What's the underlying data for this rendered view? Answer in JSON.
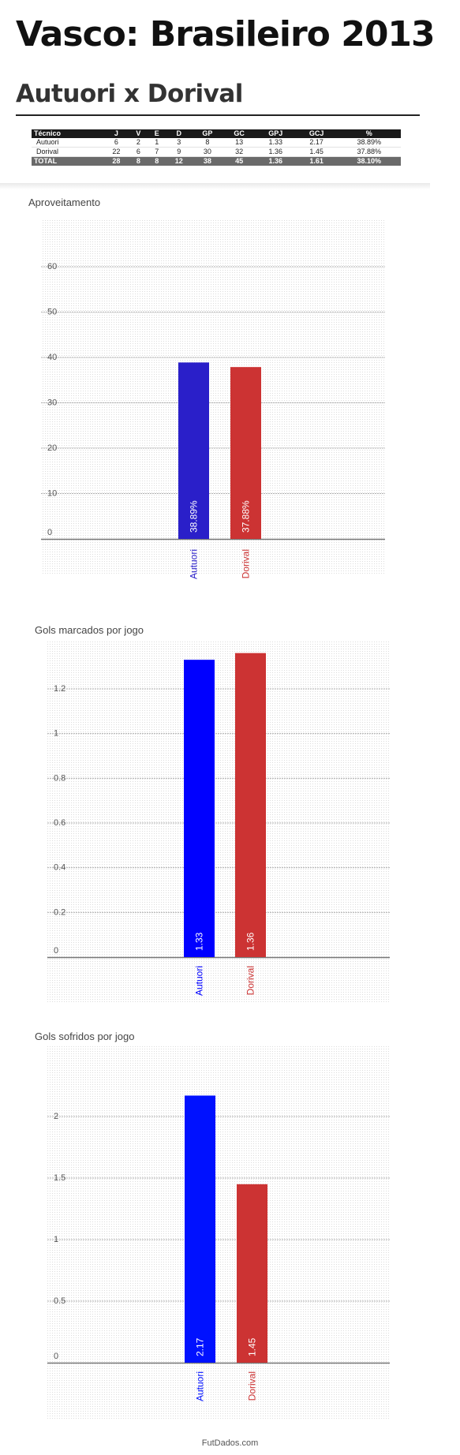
{
  "page": {
    "title": "Vasco: Brasileiro 2013",
    "subtitle": "Autuori x Dorival",
    "footer": "FutDados.com"
  },
  "stats_table": {
    "headers": [
      "Técnico",
      "J",
      "V",
      "E",
      "D",
      "GP",
      "GC",
      "GPJ",
      "GCJ",
      "%"
    ],
    "rows": [
      [
        "Autuori",
        "6",
        "2",
        "1",
        "3",
        "8",
        "13",
        "1.33",
        "2.17",
        "38.89%"
      ],
      [
        "Dorival",
        "22",
        "6",
        "7",
        "9",
        "30",
        "32",
        "1.36",
        "1.45",
        "37.88%"
      ]
    ],
    "total": [
      "TOTAL",
      "28",
      "8",
      "8",
      "12",
      "38",
      "45",
      "1.36",
      "1.61",
      "38.10%"
    ]
  },
  "chart_data": [
    {
      "type": "bar",
      "title": "Aproveitamento",
      "categories": [
        "Autuori",
        "Dorival"
      ],
      "values": [
        38.89,
        37.88
      ],
      "value_labels": [
        "38.89%",
        "37.88%"
      ],
      "ticks": [
        0,
        10,
        20,
        30,
        40,
        50,
        60
      ],
      "tick_labels": [
        "0",
        "10",
        "20",
        "30",
        "40",
        "50",
        "60"
      ],
      "ylim": [
        0,
        60
      ],
      "grid": true,
      "colors": [
        "#2a1fc9",
        "#cc3333"
      ]
    },
    {
      "type": "bar",
      "title": "Gols marcados por jogo",
      "categories": [
        "Autuori",
        "Dorival"
      ],
      "values": [
        1.33,
        1.36
      ],
      "value_labels": [
        "1.33",
        "1.36"
      ],
      "ticks": [
        0,
        0.2,
        0.4,
        0.6,
        0.8,
        1,
        1.2
      ],
      "tick_labels": [
        "0",
        "0.2",
        "0.4",
        "0.6",
        "0.8",
        "1",
        "1.2"
      ],
      "ylim": [
        0,
        1.2
      ],
      "grid": true,
      "colors": [
        "#0000ff",
        "#cc3333"
      ]
    },
    {
      "type": "bar",
      "title": "Gols sofridos por jogo",
      "categories": [
        "Autuori",
        "Dorival"
      ],
      "values": [
        2.17,
        1.45
      ],
      "value_labels": [
        "2.17",
        "1.45"
      ],
      "ticks": [
        0,
        0.5,
        1,
        1.5,
        2
      ],
      "tick_labels": [
        "0",
        "0.5",
        "1",
        "1.5",
        "2"
      ],
      "ylim": [
        0,
        2
      ],
      "grid": true,
      "colors": [
        "#0011ff",
        "#cc3333"
      ]
    }
  ]
}
